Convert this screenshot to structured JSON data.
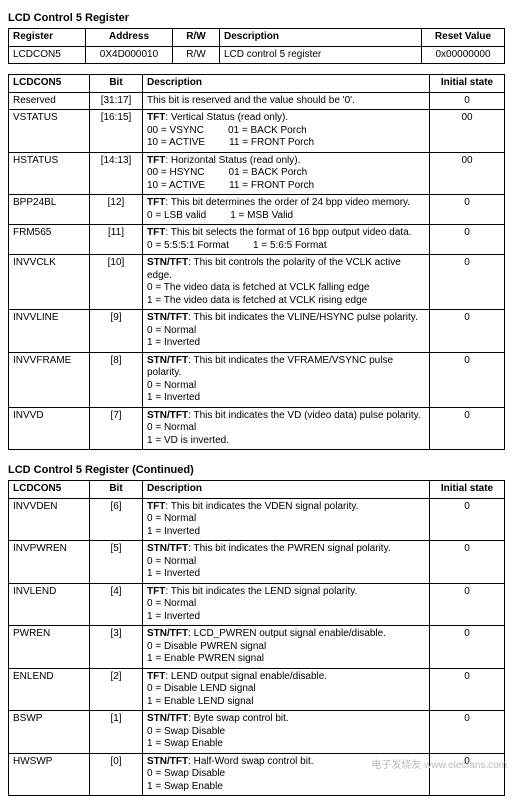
{
  "titles": {
    "main": "LCD Control 5 Register",
    "continued": "LCD Control 5 Register (Continued)"
  },
  "reg_table": {
    "headers": [
      "Register",
      "Address",
      "R/W",
      "Description",
      "Reset Value"
    ],
    "row": {
      "register": "LCDCON5",
      "address": "0X4D000010",
      "rw": "R/W",
      "desc": "LCD control 5 register",
      "reset": "0x00000000"
    }
  },
  "bit_table1": {
    "headers": [
      "LCDCON5",
      "Bit",
      "Description",
      "Initial state"
    ],
    "rows": [
      {
        "name": "Reserved",
        "bit": "[31:17]",
        "init": "0",
        "plain": "This bit is reserved and the value should be '0'."
      },
      {
        "name": "VSTATUS",
        "bit": "[16:15]",
        "init": "00",
        "prefix": "TFT",
        "prefix_text": ": Vertical Status (read only).",
        "opts": [
          "00 = VSYNC",
          "01 = BACK Porch",
          "10 = ACTIVE",
          "11 = FRONT Porch"
        ]
      },
      {
        "name": "HSTATUS",
        "bit": "[14:13]",
        "init": "00",
        "prefix": "TFT",
        "prefix_text": ": Horizontal Status (read only).",
        "opts": [
          "00 = HSYNC",
          "01 = BACK Porch",
          "10 = ACTIVE",
          "11 = FRONT Porch"
        ]
      },
      {
        "name": "BPP24BL",
        "bit": "[12]",
        "init": "0",
        "prefix": "TFT",
        "prefix_text": ": This bit determines the order of 24 bpp video memory.",
        "opts": [
          "0 = LSB valid",
          "1 = MSB Valid"
        ]
      },
      {
        "name": "FRM565",
        "bit": "[11]",
        "init": "0",
        "prefix": "TFT",
        "prefix_text": ": This bit selects the format of 16 bpp output video data.",
        "opts": [
          "0 = 5:5:5:1 Format",
          "1 = 5:6:5 Format"
        ]
      },
      {
        "name": "INVVCLK",
        "bit": "[10]",
        "init": "0",
        "prefix": "STN/TFT",
        "prefix_text": ": This bit controls the polarity of the VCLK active edge.",
        "lines": [
          "0 = The video data is fetched at VCLK falling edge",
          "1 = The video data is fetched at VCLK rising edge"
        ]
      },
      {
        "name": "INVVLINE",
        "bit": "[9]",
        "init": "0",
        "prefix": "STN/TFT",
        "prefix_text": ": This bit indicates the VLINE/HSYNC pulse polarity.",
        "lines": [
          "0 = Normal",
          "1 = Inverted"
        ]
      },
      {
        "name": "INVVFRAME",
        "bit": "[8]",
        "init": "0",
        "prefix": "STN/TFT",
        "prefix_text": ": This bit indicates the VFRAME/VSYNC pulse polarity.",
        "lines": [
          "0 = Normal",
          "1 = Inverted"
        ]
      },
      {
        "name": "INVVD",
        "bit": "[7]",
        "init": "0",
        "prefix": "STN/TFT",
        "prefix_text": ": This bit indicates the VD (video data) pulse polarity.",
        "lines": [
          "0 = Normal",
          "1 = VD is inverted."
        ]
      }
    ]
  },
  "bit_table2": {
    "headers": [
      "LCDCON5",
      "Bit",
      "Description",
      "Initial state"
    ],
    "rows": [
      {
        "name": "INVVDEN",
        "bit": "[6]",
        "init": "0",
        "prefix": "TFT",
        "prefix_text": ": This bit indicates the VDEN signal polarity.",
        "lines": [
          "0 = Normal",
          "1 = Inverted"
        ]
      },
      {
        "name": "INVPWREN",
        "bit": "[5]",
        "init": "0",
        "prefix": "STN/TFT",
        "prefix_text": ": This bit indicates the PWREN signal polarity.",
        "lines": [
          "0 = Normal",
          "1 = Inverted"
        ]
      },
      {
        "name": "INVLEND",
        "bit": "[4]",
        "init": "0",
        "prefix": "TFT",
        "prefix_text": ": This bit indicates the LEND signal polarity.",
        "lines": [
          "0 = Normal",
          "1 = Inverted"
        ]
      },
      {
        "name": "PWREN",
        "bit": "[3]",
        "init": "0",
        "prefix": "STN/TFT",
        "prefix_text": ": LCD_PWREN output signal enable/disable.",
        "lines": [
          "0 = Disable PWREN signal",
          "1 = Enable PWREN signal"
        ]
      },
      {
        "name": "ENLEND",
        "bit": "[2]",
        "init": "0",
        "prefix": "TFT",
        "prefix_text": ": LEND output signal enable/disable.",
        "lines": [
          "0 = Disable LEND signal",
          "1 = Enable LEND signal"
        ]
      },
      {
        "name": "BSWP",
        "bit": "[1]",
        "init": "0",
        "prefix": "STN/TFT",
        "prefix_text": ": Byte swap control bit.",
        "lines": [
          "0 = Swap Disable",
          "1 = Swap Enable"
        ]
      },
      {
        "name": "HWSWP",
        "bit": "[0]",
        "init": "0",
        "prefix": "STN/TFT",
        "prefix_text": ": Half-Word swap control bit.",
        "lines": [
          "0 = Swap Disable",
          "1 = Swap Enable"
        ]
      }
    ]
  },
  "watermark": "电子发烧友 www.elecfans.com"
}
